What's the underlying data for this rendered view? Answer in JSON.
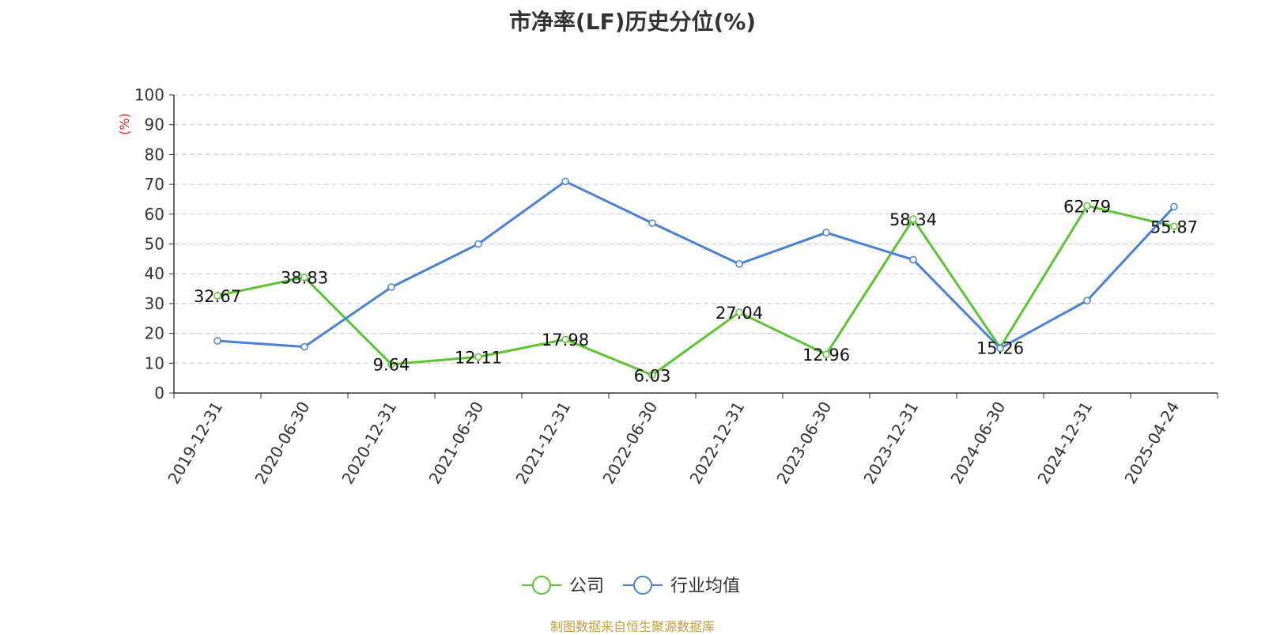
{
  "title": "市净率(LF)历史分位(%)",
  "source": "制图数据来自恒生聚源数据库",
  "colors": {
    "company": "#5ac433",
    "industry": "#4a80d8",
    "unit": "#e02020",
    "source": "#c8a040"
  },
  "chart_data": {
    "type": "line",
    "title": "市净率(LF)历史分位(%)",
    "ylabel": "(%)",
    "ylim": [
      0,
      100
    ],
    "yticks": [
      0,
      10,
      20,
      30,
      40,
      50,
      60,
      70,
      80,
      90,
      100
    ],
    "grid": true,
    "legend_position": "bottom",
    "categories": [
      "2019-12-31",
      "2020-06-30",
      "2020-12-31",
      "2021-06-30",
      "2021-12-31",
      "2022-06-30",
      "2022-12-31",
      "2023-06-30",
      "2023-12-31",
      "2024-06-30",
      "2024-12-31",
      "2025-04-24"
    ],
    "series": [
      {
        "name": "公司",
        "color": "#5ac433",
        "labels": true,
        "values": [
          32.67,
          38.83,
          9.64,
          12.11,
          17.98,
          6.03,
          27.04,
          12.96,
          58.34,
          15.26,
          62.79,
          55.87
        ]
      },
      {
        "name": "行业均值",
        "color": "#4a80d8",
        "labels": false,
        "values": [
          17.5,
          15.5,
          35.5,
          50.0,
          71.0,
          57.0,
          43.3,
          53.8,
          44.7,
          15.0,
          31.0,
          62.5
        ]
      }
    ]
  }
}
